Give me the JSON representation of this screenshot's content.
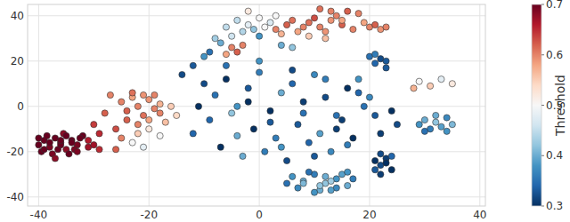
{
  "chart_data": {
    "type": "scatter",
    "xlim": [
      -42,
      41
    ],
    "xticks": [
      -40,
      -20,
      0,
      20,
      40
    ],
    "ylim": [
      -44,
      45
    ],
    "yticks": [
      -40,
      -20,
      0,
      20,
      40
    ],
    "grid": true,
    "colorbar": {
      "label": "Threshold",
      "range": [
        0.3,
        0.7
      ],
      "ticks": [
        0.3,
        0.4,
        0.5,
        0.6,
        0.7
      ]
    },
    "series": [
      {
        "x": [
          -40,
          -39,
          -38,
          -37,
          -36,
          -35,
          -34,
          -33,
          -32,
          -31,
          -39.5,
          -38.5,
          -37.5,
          -36.5,
          -35.5,
          -34.5,
          -33.5,
          -32.5,
          -38,
          -36,
          -40,
          -37,
          -35,
          -33,
          -31,
          -30,
          -29,
          -34,
          -36,
          -39
        ],
        "values": [
          -17,
          -15,
          -18,
          -14,
          -16,
          -19,
          -15,
          -17,
          -13,
          -18,
          -20,
          -13,
          -21,
          -19,
          -12,
          -21,
          -19,
          -14,
          -16,
          -17,
          -14,
          -23,
          -13,
          -20,
          -15,
          -17,
          -19,
          -16,
          -15,
          -19
        ],
        "thresholds": [
          0.7,
          0.7,
          0.69,
          0.7,
          0.7,
          0.68,
          0.7,
          0.69,
          0.7,
          0.67,
          0.7,
          0.7,
          0.69,
          0.7,
          0.68,
          0.7,
          0.69,
          0.7,
          0.7,
          0.7,
          0.7,
          0.68,
          0.7,
          0.69,
          0.66,
          0.67,
          0.65,
          0.7,
          0.7,
          0.7
        ]
      },
      {
        "x": [
          -25,
          -24,
          -23,
          -22,
          -21,
          -20,
          -19,
          -18,
          -24,
          -22,
          -20,
          -18,
          -23,
          -21,
          -19,
          -17,
          -26,
          -25,
          -22,
          -20,
          -28,
          -27,
          -30,
          -16,
          -15,
          -23,
          -21,
          -29,
          -26,
          -18
        ],
        "values": [
          2,
          -2,
          4,
          0,
          -4,
          3,
          -1,
          1,
          -6,
          -8,
          -6,
          -3,
          6,
          5,
          5,
          -7,
          -10,
          -14,
          -12,
          -10,
          -3,
          5,
          -8,
          0,
          -4,
          -16,
          -18,
          -12,
          -19,
          -13
        ],
        "thresholds": [
          0.6,
          0.62,
          0.58,
          0.6,
          0.61,
          0.59,
          0.6,
          0.57,
          0.62,
          0.6,
          0.58,
          0.6,
          0.61,
          0.59,
          0.6,
          0.56,
          0.63,
          0.6,
          0.55,
          0.52,
          0.62,
          0.6,
          0.64,
          0.55,
          0.54,
          0.5,
          0.48,
          0.65,
          0.62,
          0.5
        ]
      },
      {
        "x": [
          3,
          5,
          7,
          9,
          11,
          13,
          15,
          17,
          19,
          4,
          6,
          8,
          10,
          12,
          14,
          16,
          18,
          11,
          13,
          15,
          20,
          21,
          22,
          23,
          -5,
          -4,
          -6,
          -3,
          9,
          12
        ],
        "values": [
          34,
          36,
          33,
          37,
          35,
          38,
          36,
          34,
          37,
          32,
          38,
          35,
          39,
          33,
          40,
          42,
          41,
          43,
          42,
          38,
          35,
          36,
          34,
          35,
          26,
          24,
          23,
          27,
          31,
          30
        ],
        "thresholds": [
          0.6,
          0.62,
          0.58,
          0.61,
          0.6,
          0.59,
          0.62,
          0.6,
          0.58,
          0.57,
          0.61,
          0.6,
          0.63,
          0.59,
          0.6,
          0.62,
          0.6,
          0.61,
          0.6,
          0.58,
          0.6,
          0.62,
          0.59,
          0.6,
          0.6,
          0.62,
          0.58,
          0.6,
          0.55,
          0.56
        ]
      },
      {
        "x": [
          -4,
          -2,
          0,
          2,
          -3,
          -1,
          1,
          -5,
          -7,
          -8,
          0,
          3,
          -2,
          -6,
          4,
          -9,
          -12,
          -10,
          -14,
          6
        ],
        "values": [
          38,
          36,
          39,
          37,
          33,
          34,
          35,
          31,
          28,
          30,
          31,
          40,
          42,
          35,
          27,
          24,
          18,
          22,
          14,
          26
        ],
        "thresholds": [
          0.45,
          0.48,
          0.5,
          0.47,
          0.44,
          0.42,
          0.5,
          0.46,
          0.4,
          0.43,
          0.38,
          0.5,
          0.52,
          0.45,
          0.4,
          0.35,
          0.33,
          0.38,
          0.32,
          0.42
        ]
      },
      {
        "x": [
          -10,
          -8,
          -6,
          -4,
          -2,
          0,
          2,
          4,
          6,
          8,
          10,
          12,
          14,
          16,
          18,
          -9,
          -5,
          -1,
          3,
          7,
          11,
          15,
          19,
          -7,
          -3,
          1,
          5,
          9,
          13,
          17,
          21,
          -11,
          -6,
          0,
          6,
          12,
          18,
          24,
          -4,
          2,
          8,
          14,
          20,
          25,
          -12,
          -2,
          4,
          10,
          16,
          22
        ],
        "values": [
          10,
          5,
          12,
          0,
          8,
          15,
          -2,
          6,
          10,
          2,
          14,
          4,
          -4,
          8,
          12,
          -6,
          -3,
          -10,
          -14,
          -8,
          -12,
          -6,
          0,
          -18,
          -22,
          -20,
          -24,
          -16,
          -20,
          -14,
          -4,
          0,
          18,
          20,
          16,
          12,
          6,
          -2,
          -13,
          -7,
          -3,
          -10,
          4,
          -8,
          -12,
          2,
          -18,
          -22,
          -17,
          -12
        ],
        "thresholds": [
          0.32,
          0.35,
          0.3,
          0.38,
          0.33,
          0.36,
          0.3,
          0.4,
          0.34,
          0.31,
          0.37,
          0.32,
          0.35,
          0.3,
          0.38,
          0.34,
          0.42,
          0.3,
          0.36,
          0.33,
          0.39,
          0.31,
          0.35,
          0.3,
          0.4,
          0.36,
          0.32,
          0.34,
          0.37,
          0.3,
          0.33,
          0.3,
          0.35,
          0.38,
          0.32,
          0.36,
          0.34,
          0.3,
          0.4,
          0.33,
          0.35,
          0.31,
          0.37,
          0.32,
          0.34,
          0.3,
          0.38,
          0.33,
          0.36,
          0.31
        ]
      },
      {
        "x": [
          6,
          8,
          10,
          12,
          14,
          16,
          7,
          9,
          11,
          13,
          15,
          17,
          8,
          10,
          12,
          14,
          5,
          16,
          11,
          13
        ],
        "values": [
          -31,
          -33,
          -30,
          -34,
          -32,
          -35,
          -36,
          -29,
          -37,
          -33,
          -30,
          -32,
          -34,
          -38,
          -31,
          -36,
          -34,
          -29,
          -35,
          -37
        ],
        "thresholds": [
          0.38,
          0.4,
          0.36,
          0.42,
          0.38,
          0.4,
          0.37,
          0.35,
          0.4,
          0.43,
          0.39,
          0.36,
          0.41,
          0.38,
          0.4,
          0.37,
          0.35,
          0.38,
          0.42,
          0.39
        ]
      },
      {
        "x": [
          29,
          30,
          31,
          32,
          33,
          34,
          35,
          30,
          32,
          34,
          29,
          31,
          33,
          35,
          28,
          21,
          22,
          23,
          24,
          21,
          22,
          23,
          21,
          22,
          23,
          20,
          24,
          22,
          21,
          23
        ],
        "values": [
          -8,
          -6,
          -10,
          -7,
          -9,
          -5,
          -8,
          -11,
          -4,
          -11,
          11,
          9,
          12,
          10,
          8,
          -24,
          -26,
          -23,
          -28,
          -28,
          -30,
          -25,
          19,
          21,
          20,
          22,
          -22,
          -21,
          23,
          17
        ],
        "thresholds": [
          0.38,
          0.4,
          0.36,
          0.42,
          0.39,
          0.37,
          0.41,
          0.35,
          0.4,
          0.38,
          0.5,
          0.55,
          0.48,
          0.52,
          0.57,
          0.3,
          0.32,
          0.31,
          0.3,
          0.33,
          0.31,
          0.3,
          0.34,
          0.32,
          0.33,
          0.35,
          0.34,
          0.32,
          0.36,
          0.33
        ]
      }
    ]
  }
}
